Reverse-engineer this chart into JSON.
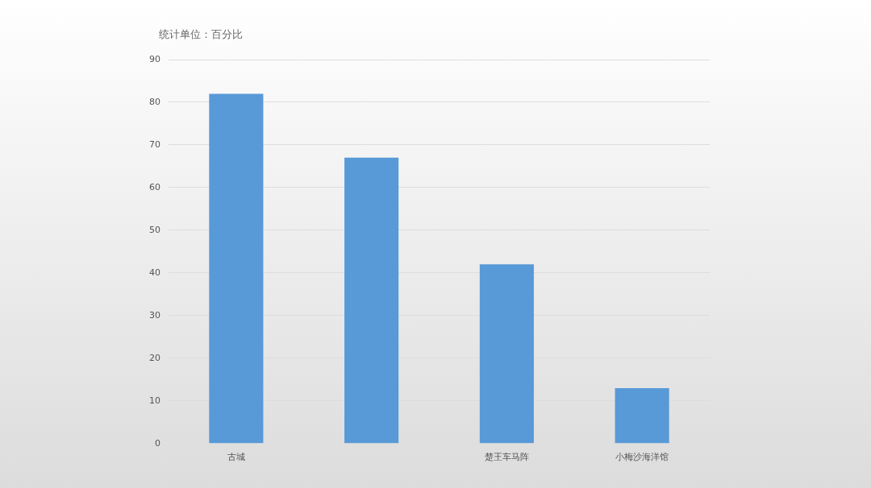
{
  "chart_data": {
    "type": "bar",
    "title": "统计单位：百分比",
    "categories": [
      "古城",
      null,
      "楚王车马阵",
      "小梅沙海洋馆"
    ],
    "values": [
      82,
      67,
      42,
      13
    ],
    "color": "#5899d7",
    "ylim": [
      0,
      90
    ],
    "yticks": [
      0,
      10,
      20,
      30,
      40,
      50,
      60,
      70,
      80,
      90
    ],
    "grid": "y",
    "legend": false
  }
}
